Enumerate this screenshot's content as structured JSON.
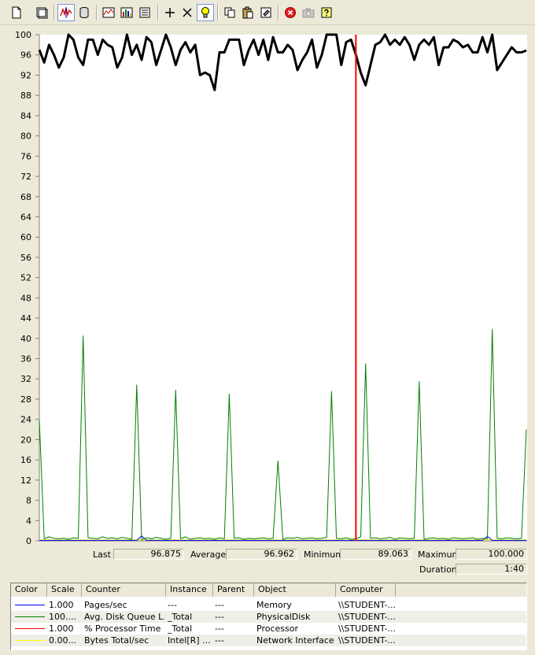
{
  "toolbar": {
    "buttons": [
      {
        "name": "new-counter-set-button",
        "icon": "new-document-icon"
      },
      {
        "name": "clear-display-button",
        "icon": "clear-display-icon"
      },
      {
        "name": "view-current-activity-button",
        "icon": "current-activity-icon",
        "pressed": true
      },
      {
        "name": "view-log-data-button",
        "icon": "database-icon"
      },
      {
        "name": "view-graph-button",
        "icon": "graph-icon"
      },
      {
        "name": "view-histogram-button",
        "icon": "histogram-icon"
      },
      {
        "name": "view-report-button",
        "icon": "report-icon"
      },
      {
        "name": "add-counter-button",
        "icon": "plus-icon"
      },
      {
        "name": "delete-counter-button",
        "icon": "x-icon"
      },
      {
        "name": "highlight-button",
        "icon": "lightbulb-icon"
      },
      {
        "name": "copy-properties-button",
        "icon": "copy-icon"
      },
      {
        "name": "paste-counter-list-button",
        "icon": "paste-icon"
      },
      {
        "name": "properties-button",
        "icon": "properties-icon"
      },
      {
        "name": "freeze-display-button",
        "icon": "stop-icon"
      },
      {
        "name": "update-data-button",
        "icon": "camera-icon"
      },
      {
        "name": "help-button",
        "icon": "help-icon"
      }
    ]
  },
  "graph": {
    "y_ticks": [
      "100",
      "96",
      "92",
      "88",
      "84",
      "80",
      "76",
      "72",
      "68",
      "64",
      "60",
      "56",
      "52",
      "48",
      "44",
      "40",
      "36",
      "32",
      "28",
      "24",
      "20",
      "16",
      "12",
      "8",
      "4",
      "0"
    ],
    "colors": {
      "background": "#ffffff",
      "processor": "#000000",
      "disk": "#008000",
      "pages": "#0000ff",
      "bytes": "#ffff00",
      "time_bar": "#ff0000"
    }
  },
  "chart_data": {
    "type": "line",
    "ylim": [
      0,
      100
    ],
    "x_count": 101,
    "time_bar_index": 65,
    "series": [
      {
        "values": [
          97,
          94.5,
          98,
          96,
          93.5,
          95.5,
          100,
          99,
          95.5,
          94,
          99,
          99,
          96,
          99,
          98,
          97.5,
          93.5,
          95.5,
          100,
          96,
          98,
          95,
          99.5,
          98.5,
          94,
          97,
          100,
          97.5,
          94,
          97,
          98.5,
          96.5,
          98,
          92,
          92.5,
          92,
          89.063,
          96.5,
          96.5,
          99,
          99,
          99,
          94,
          97,
          99,
          96,
          99,
          95,
          99.5,
          96.5,
          96.5,
          98,
          97,
          93,
          95,
          96.5,
          99,
          93.5,
          96,
          100,
          100,
          100,
          94,
          98.5,
          99,
          96,
          92.5,
          90,
          94,
          98,
          98.5,
          100,
          98,
          99,
          98,
          99.5,
          98,
          95,
          98,
          99,
          98,
          99.5,
          94,
          97.5,
          97.5,
          99,
          98.5,
          97.5,
          98,
          96.5,
          96.5,
          99.5,
          96.5,
          100,
          93,
          94.5,
          96,
          97.5,
          96.5,
          96.5,
          96.875
        ]
      },
      {
        "values": [
          23.8,
          0.4,
          0.8,
          0.5,
          0.4,
          0.5,
          0.3,
          0.6,
          0.5,
          40.5,
          0.6,
          0.5,
          0.4,
          0.8,
          0.5,
          0.6,
          0.4,
          0.7,
          0.5,
          0.3,
          30.8,
          0.2,
          0.6,
          0.4,
          0.7,
          0.5,
          0.3,
          0.5,
          29.8,
          0.4,
          0.8,
          0.3,
          0.5,
          0.6,
          0.4,
          0.5,
          0.3,
          0.6,
          0.4,
          29,
          0.5,
          0.6,
          0.3,
          0.5,
          0.4,
          0.5,
          0.6,
          0.4,
          0.5,
          15.8,
          0.3,
          0.6,
          0.5,
          0.7,
          0.4,
          0.5,
          0.6,
          0.4,
          0.5,
          0.7,
          29.5,
          0.5,
          0.4,
          0.6,
          0.3,
          0.4,
          0.8,
          35,
          0.5,
          0.6,
          0.4,
          0.5,
          0.7,
          0.3,
          0.6,
          0.5,
          0.4,
          0.5,
          31.5,
          0.3,
          0.5,
          0.6,
          0.4,
          0.5,
          0.3,
          0.6,
          0.5,
          0.4,
          0.5,
          0.6,
          0.3,
          0.5,
          0.4,
          41.8,
          0.5,
          0.4,
          0.6,
          0.5,
          0.4,
          0.5,
          22
        ]
      }
    ]
  },
  "stats": {
    "last_label": "Last",
    "last_value": "96.875",
    "average_label": "Average",
    "average_value": "96.962",
    "minimum_label": "Minimum",
    "minimum_value": "89.063",
    "maximum_label": "Maximum",
    "maximum_value": "100.000",
    "duration_label": "Duration",
    "duration_value": "1:40"
  },
  "legend": {
    "columns": [
      "Color",
      "Scale",
      "Counter",
      "Instance",
      "Parent",
      "Object",
      "Computer"
    ],
    "rows": [
      {
        "color": "#0000ff",
        "scale": "1.000",
        "counter": "Pages/sec",
        "instance": "---",
        "parent": "---",
        "object": "Memory",
        "computer": "\\\\STUDENT-..."
      },
      {
        "color": "#008000",
        "scale": "100....",
        "counter": "Avg. Disk Queue L...",
        "instance": "_Total",
        "parent": "---",
        "object": "PhysicalDisk",
        "computer": "\\\\STUDENT-..."
      },
      {
        "color": "#ff0000",
        "scale": "1.000",
        "counter": "% Processor Time",
        "instance": "_Total",
        "parent": "---",
        "object": "Processor",
        "computer": "\\\\STUDENT-..."
      },
      {
        "color": "#ffff00",
        "scale": "0.00...",
        "counter": "Bytes Total/sec",
        "instance": "Intel[R] ...",
        "parent": "---",
        "object": "Network Interface",
        "computer": "\\\\STUDENT-..."
      }
    ]
  }
}
